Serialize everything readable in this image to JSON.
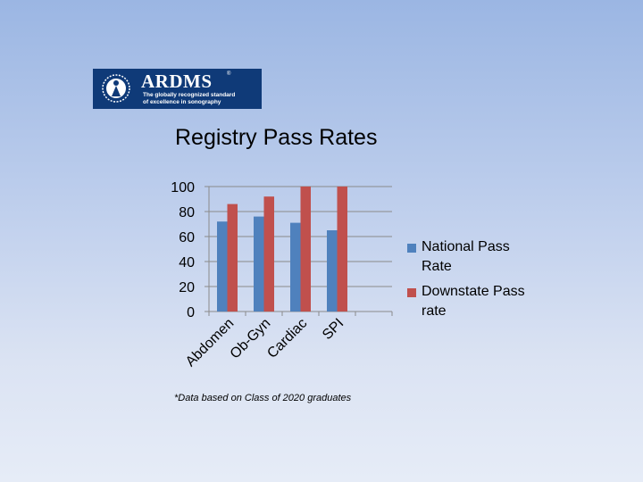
{
  "logo": {
    "title": "ARDMS",
    "registered": "®",
    "tagline_line1": "The globally recognized standard",
    "tagline_line2": "of excellence in sonography",
    "background": "#0f3a78"
  },
  "footnote": "*Data based on Class of 2020 graduates",
  "chart_data": {
    "type": "bar",
    "title": "Registry Pass Rates",
    "categories": [
      "Abdomen",
      "Ob-Gyn",
      "Cardiac",
      "SPI",
      ""
    ],
    "series": [
      {
        "name": "National Pass Rate",
        "color": "#4f81bd",
        "values": [
          72,
          76,
          71,
          65,
          null
        ]
      },
      {
        "name": "Downstate Pass rate",
        "color": "#c0504d",
        "values": [
          86,
          92,
          100,
          100,
          null
        ]
      }
    ],
    "ylim": [
      0,
      100
    ],
    "yticks": [
      "0",
      "20",
      "40",
      "60",
      "80",
      "100"
    ],
    "xlabel": "",
    "ylabel": "",
    "grid": true,
    "legend_position": "right"
  }
}
